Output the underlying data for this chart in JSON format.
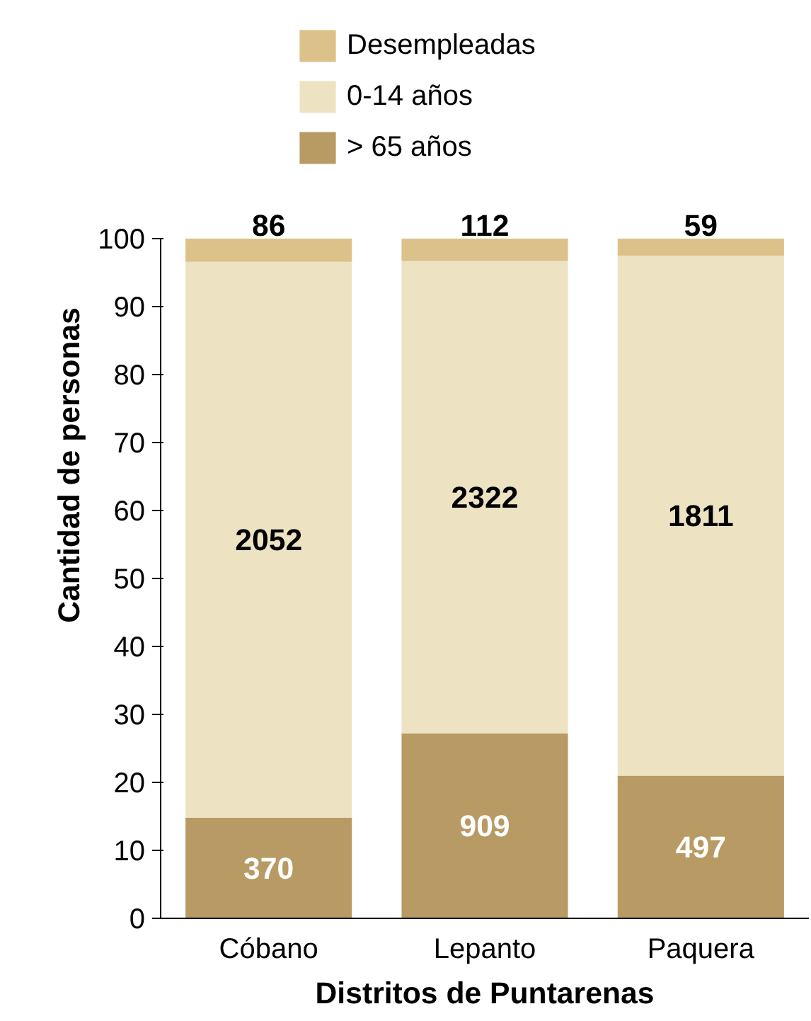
{
  "chart_data": {
    "type": "bar",
    "stacked": true,
    "xlabel": "Distritos de Puntarenas",
    "ylabel": "Cantidad de personas",
    "categories": [
      "Cóbano",
      "Lepanto",
      "Paquera"
    ],
    "series": [
      {
        "name": "> 65 años",
        "color": "#b89a64",
        "values": [
          14.8,
          27.2,
          21.0
        ]
      },
      {
        "name": "0-14 años",
        "color": "#ede3c3",
        "values": [
          81.8,
          69.5,
          76.5
        ]
      },
      {
        "name": "Desempleadas",
        "color": "#dcc18a",
        "values": [
          3.4,
          3.3,
          2.5
        ]
      }
    ],
    "annotations": [
      {
        "text": "370",
        "x": "Cóbano",
        "y": 14.8
      },
      {
        "text": "909",
        "x": "Lepanto",
        "y": 27.2
      },
      {
        "text": "497",
        "x": "Paquera",
        "y": 21.0
      },
      "2052",
      "2322",
      "1811",
      {
        "text": "86",
        "x": "Cóbano",
        "y": 100
      },
      {
        "text": "112",
        "x": "Lepanto",
        "y": 100
      },
      {
        "text": "59",
        "x": "Paquera",
        "y": 100
      }
    ],
    "ylim": [
      0,
      100
    ],
    "yticks": [
      0,
      10,
      20,
      30,
      40,
      50,
      60,
      70,
      80,
      90,
      100
    ],
    "grid": false,
    "legend": "top"
  }
}
